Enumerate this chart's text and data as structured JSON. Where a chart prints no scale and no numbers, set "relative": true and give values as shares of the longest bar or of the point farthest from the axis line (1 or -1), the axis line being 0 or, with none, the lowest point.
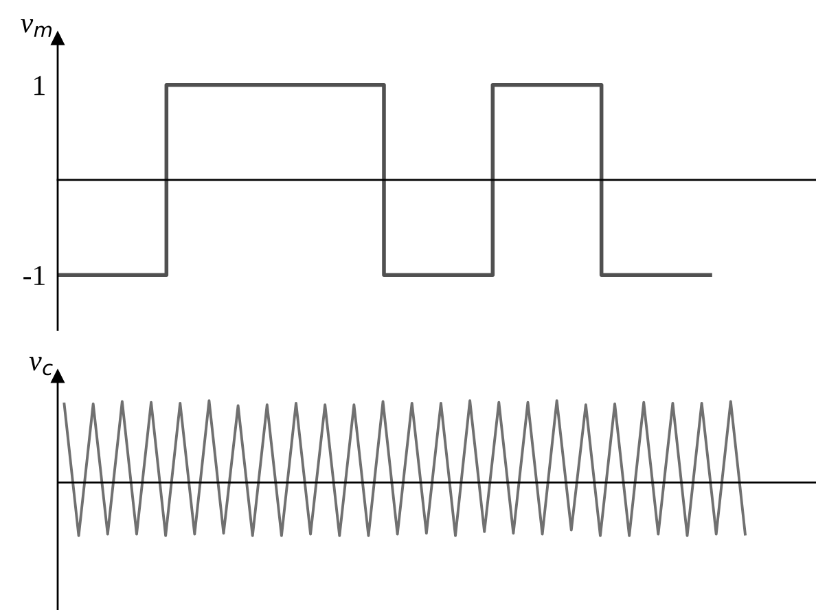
{
  "chart_data": [
    {
      "type": "step",
      "ylabel": "v$_{m}$",
      "color": "#505050",
      "categories": [
        null,
        null,
        null,
        null,
        null,
        null,
        null,
        null,
        null,
        null,
        null,
        null,
        null,
        null,
        null,
        null,
        null,
        null,
        null,
        null,
        null,
        null,
        null,
        null,
        null
      ],
      "values": [
        -1,
        -1,
        -1,
        -1,
        1,
        1,
        1,
        1,
        1,
        1,
        1,
        1,
        -1,
        -1,
        -1,
        -1,
        1,
        1,
        1,
        1,
        -1,
        -1,
        -1,
        -1,
        -1
      ],
      "ylim": [
        -1.58,
        1.49
      ],
      "yticks": [
        -1,
        1
      ],
      "tick_labels": "y"
    },
    {
      "type": "line",
      "ylabel": "v$_{c}$",
      "color": "#707070",
      "relative": true,
      "ref_lines": [
        {
          "axis": "y",
          "value": 0,
          "color": "#000000"
        }
      ],
      "tick_labels": false,
      "categories": [
        null,
        null,
        null,
        null,
        null,
        null,
        null,
        null,
        null,
        null,
        null,
        null,
        null,
        null,
        null,
        null,
        null,
        null,
        null,
        null,
        null,
        null,
        null,
        null,
        null,
        null,
        null,
        null,
        null,
        null,
        null,
        null,
        null,
        null,
        null,
        null,
        null,
        null,
        null,
        null,
        null,
        null,
        null,
        null,
        null,
        null,
        null,
        null
      ],
      "values": [
        0.96,
        -0.65,
        0.96,
        -0.63,
        0.99,
        -0.63,
        0.98,
        -0.65,
        0.97,
        -0.63,
        1,
        -0.62,
        0.94,
        -0.65,
        0.95,
        -0.65,
        0.97,
        -0.63,
        0.95,
        -0.65,
        0.95,
        -0.65,
        0.99,
        -0.63,
        0.97,
        -0.62,
        0.97,
        -0.65,
        1,
        -0.6,
        0.98,
        -0.62,
        0.98,
        -0.63,
        1,
        -0.58,
        0.95,
        -0.65,
        0.96,
        -0.65,
        0.98,
        -0.63,
        0.97,
        -0.65,
        0.97,
        -0.63,
        0.99,
        -0.63
      ]
    }
  ]
}
